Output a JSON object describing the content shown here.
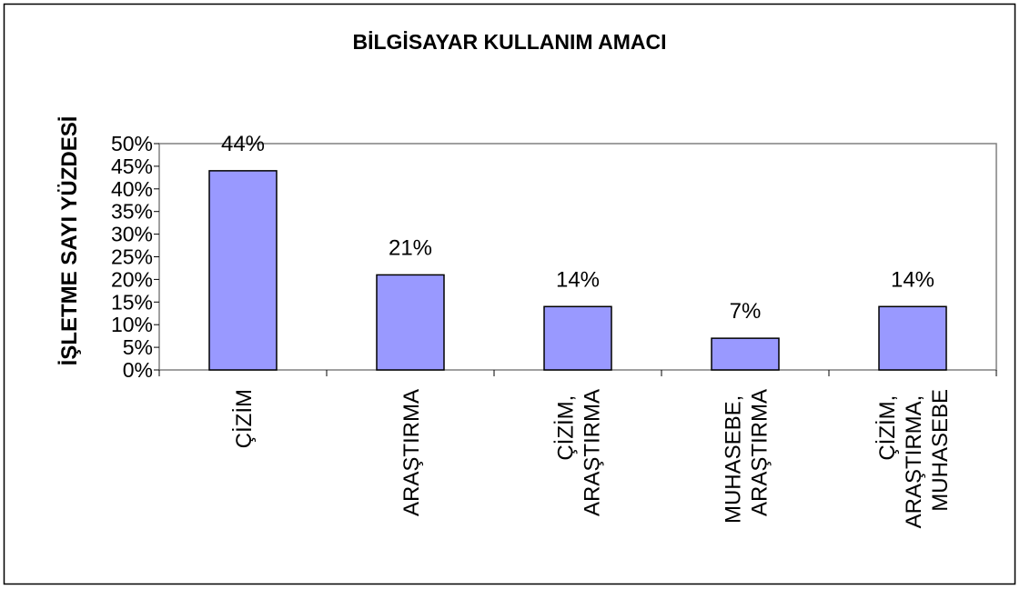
{
  "chart_data": {
    "type": "bar",
    "title": "BİLGİSAYAR KULLANIM AMACI",
    "y_label": "İŞLETME SAYI YÜZDESİ",
    "categories": [
      "ÇİZİM",
      "ARAŞTIRMA",
      "ÇİZİM, ARAŞTIRMA",
      "MUHASEBE, ARAŞTIRMA",
      "ÇİZİM, ARAŞTIRMA, MUHASEBE"
    ],
    "values": [
      44,
      21,
      14,
      7,
      14
    ],
    "value_labels": [
      "44%",
      "21%",
      "14%",
      "7%",
      "14%"
    ],
    "color": "#9999ff",
    "ylim": [
      0,
      50
    ],
    "yticks": [
      {
        "value": 0,
        "label": "0%"
      },
      {
        "value": 5,
        "label": "5%"
      },
      {
        "value": 10,
        "label": "10%"
      },
      {
        "value": 15,
        "label": "15%"
      },
      {
        "value": 20,
        "label": "20%"
      },
      {
        "value": 25,
        "label": "25%"
      },
      {
        "value": 30,
        "label": "30%"
      },
      {
        "value": 35,
        "label": "35%"
      },
      {
        "value": 40,
        "label": "40%"
      },
      {
        "value": 45,
        "label": "45%"
      },
      {
        "value": 50,
        "label": "50%"
      }
    ],
    "grid": false
  }
}
